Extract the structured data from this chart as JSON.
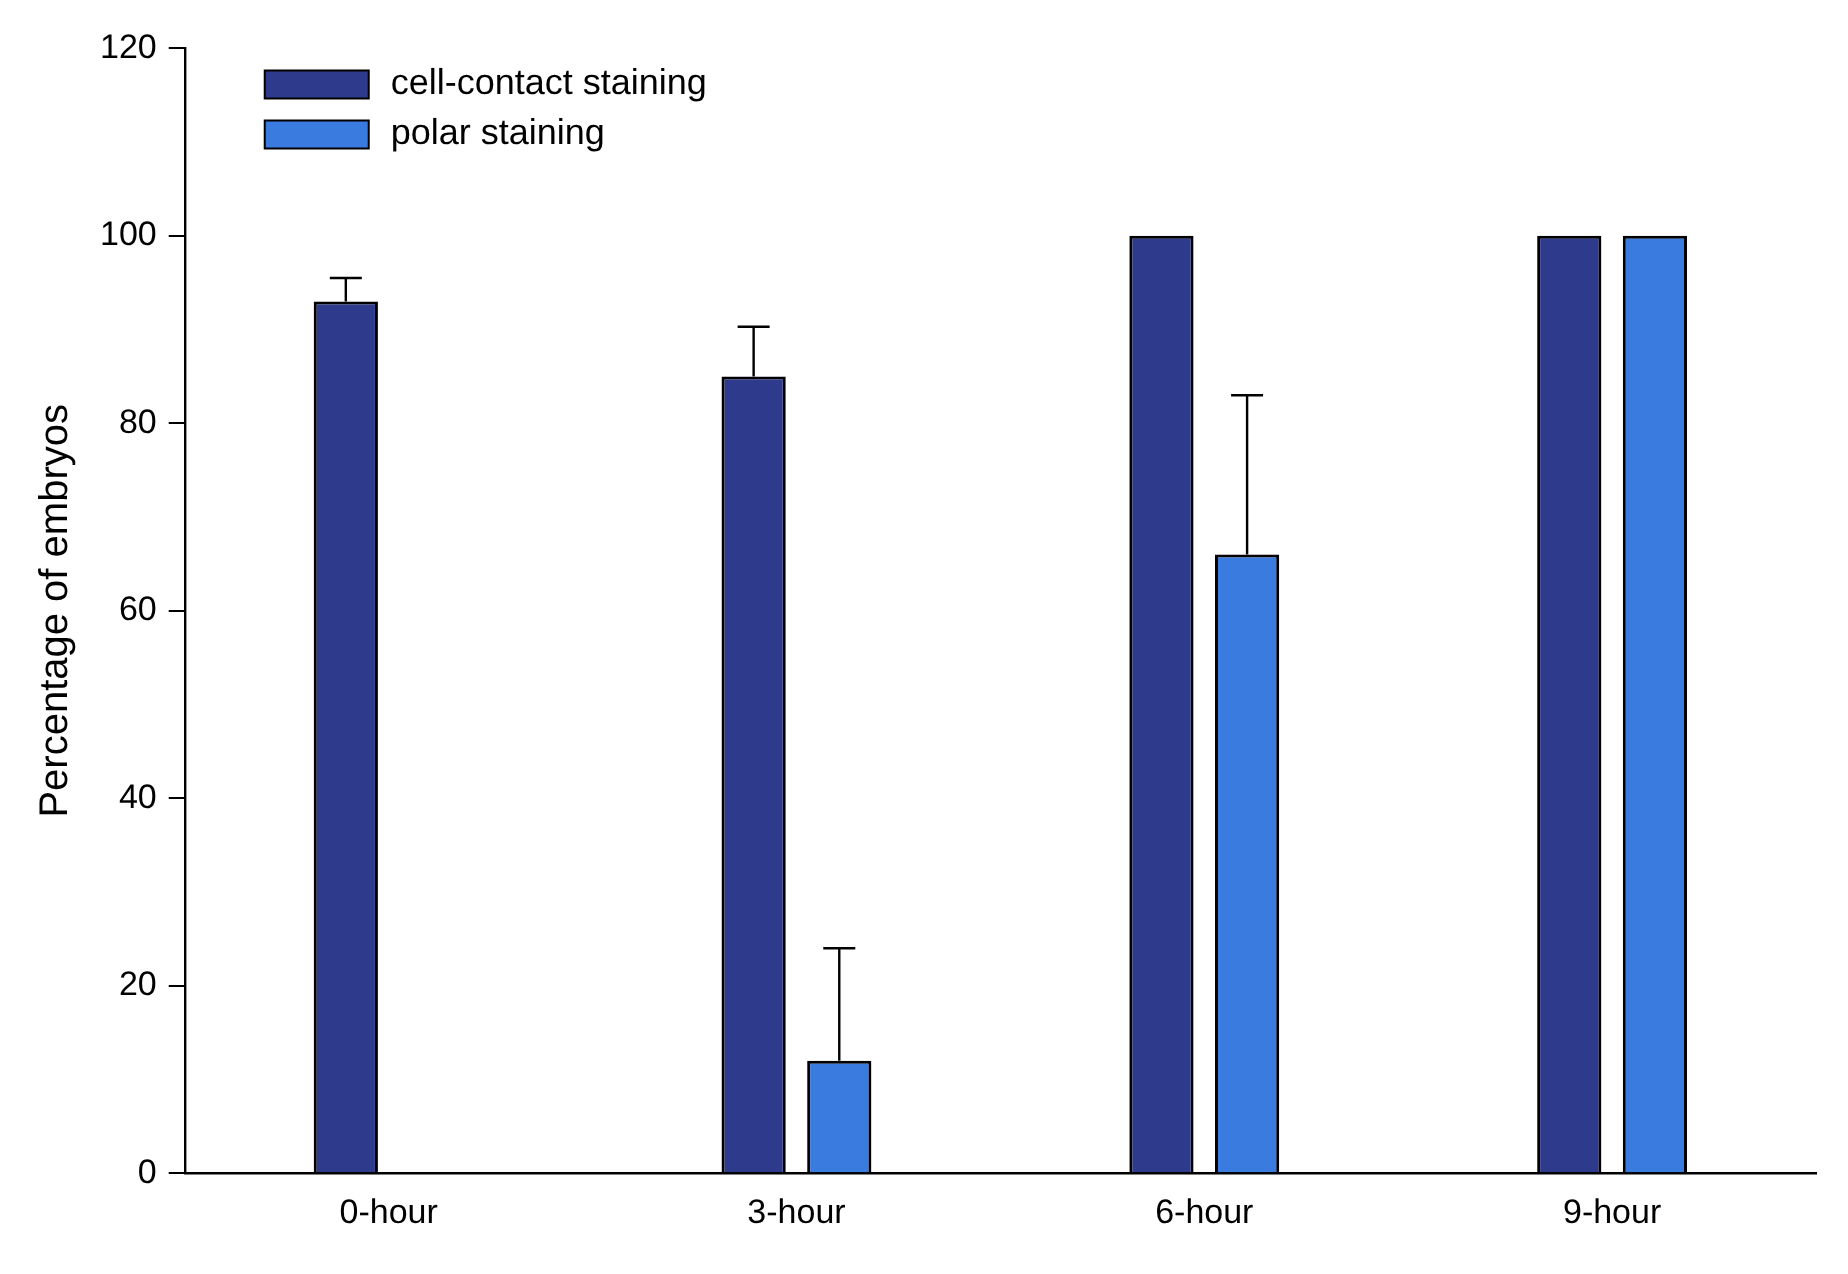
{
  "chart_data": {
    "type": "bar",
    "ylabel": "Percentage of embryos",
    "categories": [
      "0-hour",
      "3-hour",
      "6-hour",
      "9-hour"
    ],
    "series": [
      {
        "name": "cell-contact staining",
        "color": "#2e3a8c",
        "values": [
          93,
          85,
          100,
          100
        ],
        "errors": [
          [
            93,
            95.5
          ],
          [
            85,
            90.3
          ],
          null,
          null
        ]
      },
      {
        "name": "polar staining",
        "color": "#3a7be0",
        "values": [
          0,
          12,
          66,
          100
        ],
        "errors": [
          null,
          [
            12,
            24
          ],
          [
            66,
            83
          ],
          null
        ]
      }
    ],
    "ylim": [
      0,
      120
    ],
    "yticks": [
      0,
      20,
      40,
      60,
      80,
      100,
      120
    ],
    "grid": false,
    "legend": "top left"
  }
}
